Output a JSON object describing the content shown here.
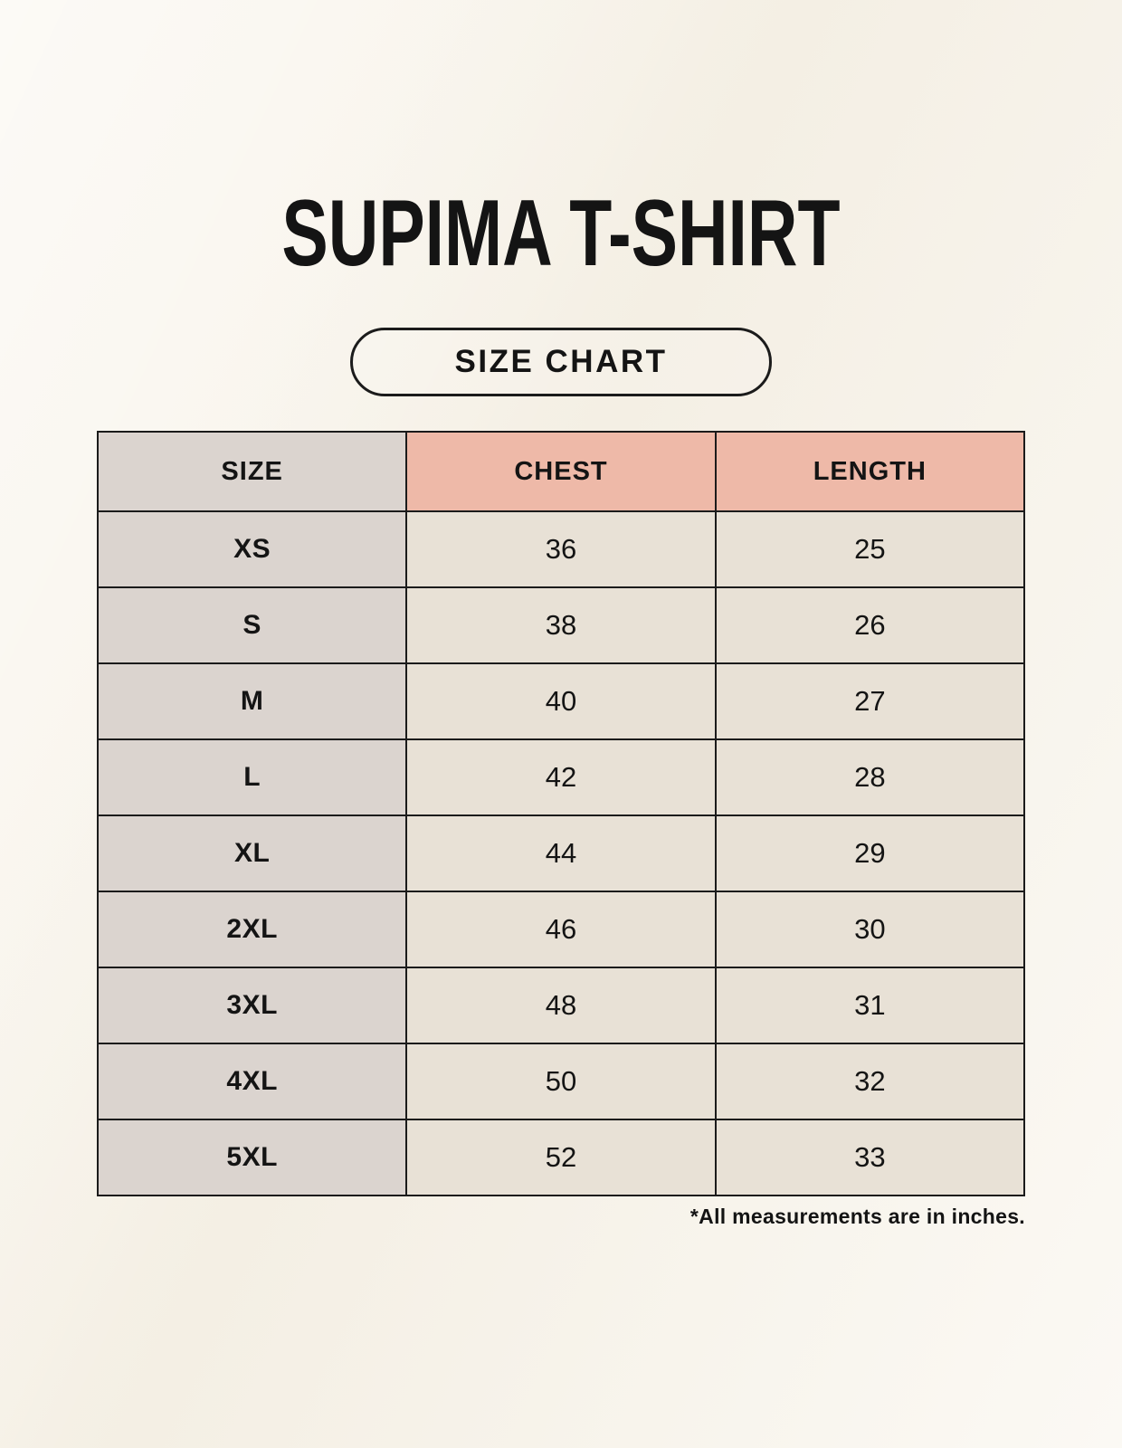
{
  "page": {
    "title": "SUPIMA T-SHIRT",
    "badge_label": "SIZE CHART",
    "footnote": "*All measurements are in inches."
  },
  "chart_data": {
    "type": "table",
    "title": "SUPIMA T-SHIRT SIZE CHART",
    "columns": [
      "SIZE",
      "CHEST",
      "LENGTH"
    ],
    "units_note": "*All measurements are in inches.",
    "rows": [
      {
        "size": "XS",
        "chest": "36",
        "length": "25"
      },
      {
        "size": "S",
        "chest": "38",
        "length": "26"
      },
      {
        "size": "M",
        "chest": "40",
        "length": "27"
      },
      {
        "size": "L",
        "chest": "42",
        "length": "28"
      },
      {
        "size": "XL",
        "chest": "44",
        "length": "29"
      },
      {
        "size": "2XL",
        "chest": "46",
        "length": "30"
      },
      {
        "size": "3XL",
        "chest": "48",
        "length": "31"
      },
      {
        "size": "4XL",
        "chest": "50",
        "length": "32"
      },
      {
        "size": "5XL",
        "chest": "52",
        "length": "33"
      }
    ]
  },
  "colors": {
    "page_background": "#f8f4eb",
    "accent_header": "#eeb9a8",
    "size_column": "#dbd4cf",
    "data_cell": "#e8e1d6",
    "table_border": "#1b1b1b",
    "text": "#141414"
  }
}
